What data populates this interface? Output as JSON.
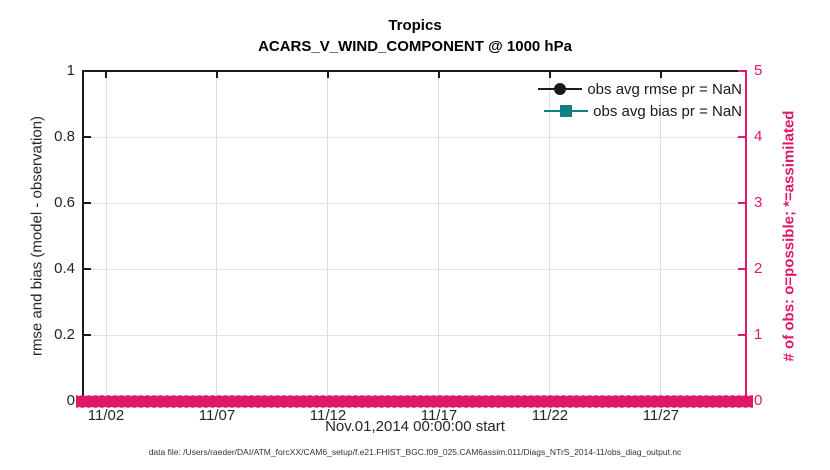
{
  "figure": {
    "title": "Tropics",
    "subtitle": "ACARS_V_WIND_COMPONENT @ 1000 hPa"
  },
  "chart_data": {
    "type": "line",
    "title": "Tropics",
    "subtitle": "ACARS_V_WIND_COMPONENT @ 1000 hPa",
    "xlabel": "Nov.01,2014 00:00:00 start",
    "ylabel_left": "rmse and bias (model - observation)",
    "ylabel_right": "# of obs: o=possible; *=assimilated",
    "x_range": [
      "11/01",
      "11/30"
    ],
    "xticks": [
      "11/02",
      "11/07",
      "11/12",
      "11/17",
      "11/22",
      "11/27"
    ],
    "ylim_left": [
      0,
      1
    ],
    "yticks_left": [
      "0",
      "0.2",
      "0.4",
      "0.6",
      "0.8",
      "1"
    ],
    "ylim_right": [
      0,
      5
    ],
    "yticks_right": [
      "0",
      "1",
      "2",
      "3",
      "4",
      "5"
    ],
    "grid": true,
    "legend_position": "top-right-inside",
    "legend": [
      {
        "label": "obs avg rmse pr = NaN",
        "color": "#1a1a1a",
        "marker": "circle"
      },
      {
        "label": "obs avg bias pr = NaN",
        "color": "#0e827e",
        "marker": "square"
      }
    ],
    "series": [
      {
        "name": "obs avg rmse",
        "axis": "left",
        "color": "#1a1a1a",
        "marker": "circle",
        "values": "NaN (no line plotted)"
      },
      {
        "name": "obs avg bias",
        "axis": "left",
        "color": "#0e827e",
        "marker": "square",
        "values": "NaN (no line plotted)"
      },
      {
        "name": "# of obs possible (o markers)",
        "axis": "right",
        "color": "#e0186a",
        "marker": "o",
        "constant_value": 0,
        "note": "dense row of overlapping circle markers at y=0 spanning the full x range"
      }
    ],
    "colors": {
      "right_axis": "#e0186a",
      "h_gridline": "#f7d9e1",
      "v_gridline": "#dcdcdc",
      "axis_text": "#262626"
    }
  },
  "footer": {
    "text": "data file: /Users/raeder/DAI/ATM_forcXX/CAM6_setup/f.e21.FHIST_BGC.f09_025.CAM6assim.011/Diags_NTrS_2014-11/obs_diag_output.nc"
  }
}
